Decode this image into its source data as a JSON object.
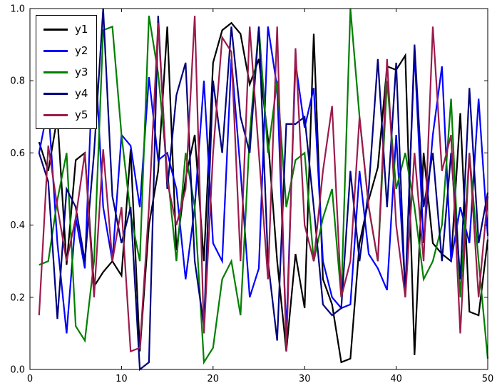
{
  "figure": {
    "background": "#ffffff",
    "frame_color": "#000000"
  },
  "chart_data": {
    "type": "line",
    "title": "",
    "xlabel": "",
    "ylabel": "",
    "xlim": [
      0,
      50
    ],
    "ylim": [
      0.0,
      1.0
    ],
    "x_ticks": [
      0,
      10,
      20,
      30,
      40,
      50
    ],
    "y_ticks": [
      "0.0",
      "0.2",
      "0.4",
      "0.6",
      "0.8",
      "1.0"
    ],
    "grid": false,
    "legend_position": "upper-left",
    "x": [
      1,
      2,
      3,
      4,
      5,
      6,
      7,
      8,
      9,
      10,
      11,
      12,
      13,
      14,
      15,
      16,
      17,
      18,
      19,
      20,
      21,
      22,
      23,
      24,
      25,
      26,
      27,
      28,
      29,
      30,
      31,
      32,
      33,
      34,
      35,
      36,
      37,
      38,
      39,
      40,
      41,
      42,
      43,
      44,
      45,
      46,
      47,
      48,
      49,
      50
    ],
    "series": [
      {
        "name": "y1",
        "color": "#000000",
        "values": [
          0.63,
          0.55,
          0.7,
          0.29,
          0.58,
          0.6,
          0.23,
          0.27,
          0.3,
          0.26,
          0.61,
          0.05,
          0.4,
          0.55,
          0.95,
          0.33,
          0.53,
          0.65,
          0.3,
          0.85,
          0.94,
          0.96,
          0.93,
          0.79,
          0.86,
          0.64,
          0.3,
          0.05,
          0.32,
          0.17,
          0.93,
          0.25,
          0.18,
          0.02,
          0.03,
          0.35,
          0.47,
          0.56,
          0.84,
          0.83,
          0.87,
          0.04,
          0.6,
          0.35,
          0.32,
          0.3,
          0.71,
          0.16,
          0.15,
          0.36
        ]
      },
      {
        "name": "y2",
        "color": "#0000ff",
        "values": [
          0.6,
          0.73,
          0.35,
          0.1,
          0.42,
          0.28,
          0.93,
          0.45,
          0.3,
          0.65,
          0.62,
          0.45,
          0.81,
          0.58,
          0.6,
          0.5,
          0.25,
          0.45,
          0.8,
          0.35,
          0.3,
          0.86,
          0.55,
          0.2,
          0.28,
          0.95,
          0.78,
          0.1,
          0.85,
          0.67,
          0.78,
          0.3,
          0.2,
          0.17,
          0.18,
          0.55,
          0.32,
          0.28,
          0.22,
          0.65,
          0.22,
          0.88,
          0.35,
          0.65,
          0.84,
          0.3,
          0.45,
          0.35,
          0.75,
          0.37
        ]
      },
      {
        "name": "y3",
        "color": "#007f00",
        "values": [
          0.29,
          0.3,
          0.47,
          0.6,
          0.12,
          0.08,
          0.3,
          0.94,
          0.95,
          0.65,
          0.43,
          0.3,
          0.98,
          0.82,
          0.55,
          0.3,
          0.6,
          0.45,
          0.02,
          0.06,
          0.25,
          0.3,
          0.15,
          0.65,
          0.95,
          0.6,
          0.8,
          0.45,
          0.58,
          0.6,
          0.3,
          0.42,
          0.5,
          0.2,
          1.0,
          0.7,
          0.45,
          0.3,
          0.8,
          0.5,
          0.6,
          0.45,
          0.25,
          0.3,
          0.4,
          0.75,
          0.2,
          0.6,
          0.3,
          0.03
        ]
      },
      {
        "name": "y4",
        "color": "#00007f",
        "values": [
          0.6,
          0.52,
          0.14,
          0.5,
          0.45,
          0.3,
          0.6,
          1.0,
          0.48,
          0.35,
          0.45,
          0.0,
          0.02,
          0.98,
          0.5,
          0.76,
          0.85,
          0.3,
          0.12,
          0.8,
          0.6,
          0.95,
          0.7,
          0.6,
          0.95,
          0.3,
          0.08,
          0.68,
          0.68,
          0.7,
          0.45,
          0.18,
          0.15,
          0.17,
          0.55,
          0.3,
          0.5,
          0.86,
          0.45,
          0.85,
          0.2,
          0.9,
          0.45,
          0.6,
          0.3,
          0.6,
          0.25,
          0.78,
          0.35,
          0.49
        ]
      },
      {
        "name": "y5",
        "color": "#9b1b4d",
        "values": [
          0.15,
          0.62,
          0.45,
          0.3,
          0.42,
          0.6,
          0.2,
          0.61,
          0.3,
          0.45,
          0.05,
          0.06,
          0.45,
          0.96,
          0.52,
          0.4,
          0.5,
          0.98,
          0.1,
          0.6,
          0.92,
          0.88,
          0.3,
          0.95,
          0.6,
          0.25,
          0.95,
          0.05,
          0.89,
          0.4,
          0.3,
          0.55,
          0.73,
          0.2,
          0.3,
          0.7,
          0.45,
          0.3,
          0.86,
          0.4,
          0.2,
          0.6,
          0.3,
          0.95,
          0.55,
          0.65,
          0.1,
          0.6,
          0.2,
          0.48
        ]
      }
    ]
  },
  "legend": {
    "entries": [
      "y1",
      "y2",
      "y3",
      "y4",
      "y5"
    ]
  }
}
